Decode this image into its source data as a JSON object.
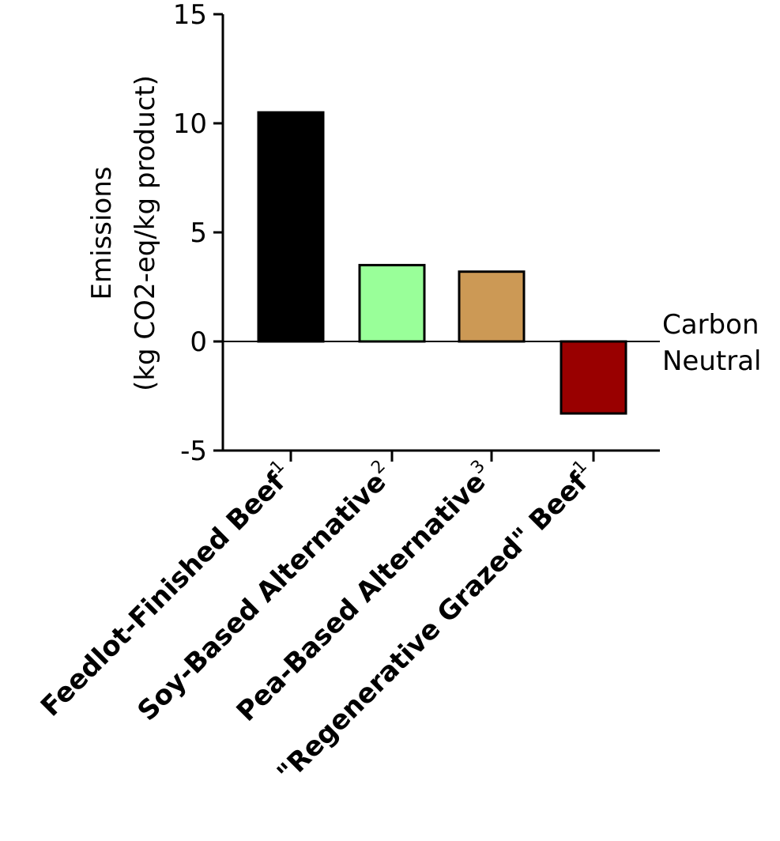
{
  "chart_data": {
    "type": "bar",
    "categories": [
      {
        "label": "Feedlot-Finished Beef",
        "sup": "1"
      },
      {
        "label": "Soy-Based Alternative",
        "sup": "2"
      },
      {
        "label": "Pea-Based Alternative",
        "sup": "3"
      },
      {
        "label": "\"Regenerative Grazed\" Beef",
        "sup": "1"
      }
    ],
    "values": [
      10.5,
      3.5,
      3.2,
      -3.3
    ],
    "colors": [
      "#000000",
      "#99ff99",
      "#cc9955",
      "#990000"
    ],
    "ylabel_lines": [
      "Emissions",
      "(kg CO2-eq/kg product)"
    ],
    "ylim": [
      -5,
      15
    ],
    "yticks": [
      -5,
      0,
      5,
      10,
      15
    ],
    "reference_line": {
      "value": 0,
      "label_lines": [
        "Carbon",
        "Neutral"
      ]
    },
    "grid": false,
    "legend": "none"
  }
}
